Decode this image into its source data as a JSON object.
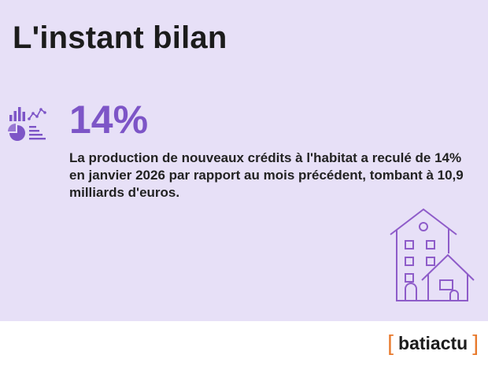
{
  "header": {
    "title": "L'instant bilan"
  },
  "stat": {
    "value": "14%",
    "description": "La production de nouveaux crédits à l'habitat a reculé de 14% en janvier 2026 par rapport au mois précédent, tombant à 10,9 milliards d'euros.",
    "icon": "data-analytics-icon"
  },
  "illustration": {
    "icon": "houses-icon"
  },
  "footer": {
    "logo_text": "batiactu",
    "bracket_left": "[",
    "bracket_right": "]"
  },
  "colors": {
    "panel_background": "#e7e0f7",
    "accent": "#7d55c7",
    "logo_bracket": "#e8792b",
    "text": "#1c1c1c"
  }
}
